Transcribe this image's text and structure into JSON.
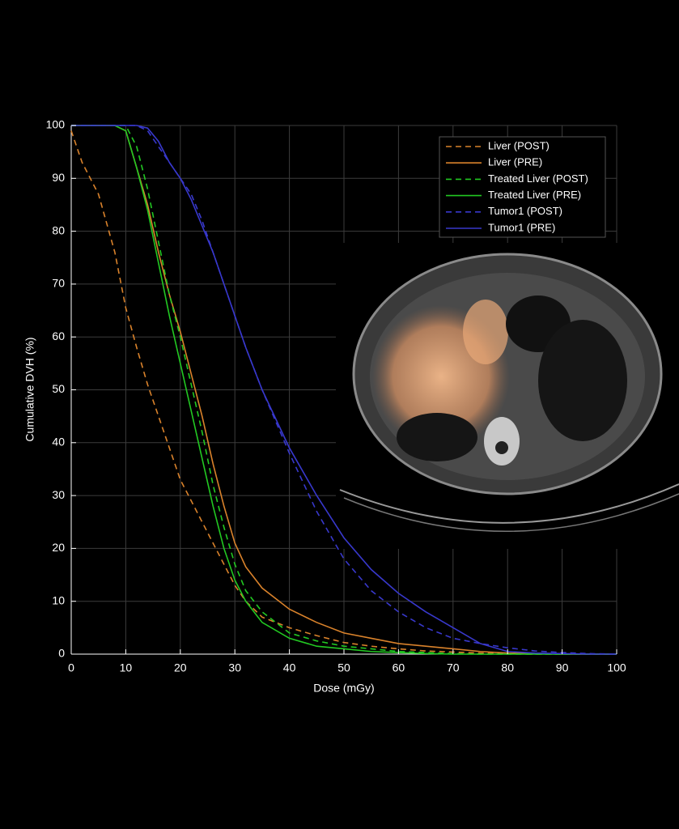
{
  "chart_data": {
    "type": "line",
    "xlabel": "Dose (mGy)",
    "ylabel": "Cumulative DVH (%)",
    "x": [
      0,
      2,
      5,
      8,
      10,
      12,
      14,
      16,
      18,
      20,
      22,
      24,
      26,
      28,
      30,
      32,
      35,
      40,
      45,
      50,
      55,
      60,
      65,
      70,
      75,
      80,
      85,
      90,
      95,
      100
    ],
    "series": [
      {
        "name": "Liver (POST)",
        "color": "#d9822b",
        "dash": true,
        "values": [
          99,
          93,
          87,
          76,
          65.5,
          58,
          51,
          45,
          39,
          33,
          29,
          25,
          21,
          17,
          13,
          10,
          7,
          5,
          3.5,
          2.2,
          1.5,
          1,
          0.6,
          0.4,
          0.2,
          0.1,
          0,
          0,
          0,
          0
        ]
      },
      {
        "name": "Liver (PRE)",
        "color": "#d9822b",
        "dash": false,
        "values": [
          100,
          100,
          100,
          100,
          99,
          92,
          85,
          76,
          68,
          61,
          53,
          45,
          36,
          28,
          21,
          16.5,
          12.5,
          8.5,
          6,
          4,
          3,
          2,
          1.5,
          1,
          0.5,
          0.2,
          0.1,
          0,
          0,
          0
        ]
      },
      {
        "name": "Treated Liver (POST)",
        "color": "#22c822",
        "dash": true,
        "values": [
          100,
          100,
          100,
          100,
          100,
          96,
          88,
          78,
          68,
          60,
          51,
          42,
          32,
          24,
          17,
          12,
          8,
          4,
          2.5,
          1.5,
          1,
          0.5,
          0.3,
          0.1,
          0,
          0,
          0,
          0,
          0,
          0
        ]
      },
      {
        "name": "Treated Liver (PRE)",
        "color": "#22c822",
        "dash": false,
        "values": [
          100,
          100,
          100,
          100,
          99,
          92,
          84,
          74,
          64,
          55,
          46,
          37,
          28,
          20,
          14,
          10,
          6,
          3,
          1.5,
          1,
          0.5,
          0.3,
          0.1,
          0,
          0,
          0,
          0,
          0,
          0,
          0
        ]
      },
      {
        "name": "Tumor1 (POST)",
        "color": "#3838cc",
        "dash": true,
        "values": [
          100,
          100,
          100,
          100,
          100,
          100,
          99,
          96,
          93,
          90,
          87,
          82,
          76,
          70,
          64,
          58,
          50,
          38,
          27,
          18,
          12,
          8,
          5,
          3,
          2,
          1.2,
          0.6,
          0.3,
          0.1,
          0
        ]
      },
      {
        "name": "Tumor1 (PRE)",
        "color": "#3838cc",
        "dash": false,
        "values": [
          100,
          100,
          100,
          100,
          100,
          100,
          99.5,
          97,
          93,
          90,
          86,
          81,
          76,
          70,
          64,
          58,
          50,
          39,
          30,
          22,
          16,
          11.5,
          8,
          5,
          2,
          0.5,
          0.2,
          0.1,
          0,
          0
        ]
      }
    ],
    "xlim": [
      0,
      100
    ],
    "ylim": [
      0,
      100
    ],
    "xticks": [
      0,
      10,
      20,
      30,
      40,
      50,
      60,
      70,
      80,
      90,
      100
    ],
    "yticks": [
      0,
      10,
      20,
      30,
      40,
      50,
      60,
      70,
      80,
      90,
      100
    ],
    "grid": true,
    "legend": "northeast"
  }
}
